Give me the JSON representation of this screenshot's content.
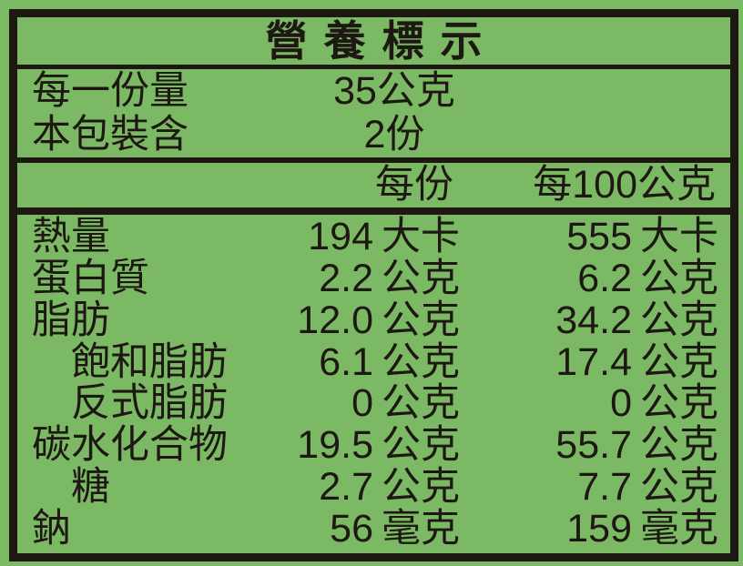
{
  "colors": {
    "background": "#7cb965",
    "ink": "#1e1813"
  },
  "title": "營養標示",
  "serving_info": {
    "rows": [
      {
        "label": "每一份量",
        "value": "35公克"
      },
      {
        "label": "本包裝含",
        "value": "2份"
      }
    ]
  },
  "column_headers": {
    "per_serving": "每份",
    "per_100g": "每100公克"
  },
  "nutrients": [
    {
      "label": "熱量",
      "per_serving": {
        "num": "194",
        "unit": "大卡"
      },
      "per_100g": {
        "num": "555",
        "unit": "大卡"
      }
    },
    {
      "label": "蛋白質",
      "per_serving": {
        "num": "2.2",
        "unit": "公克"
      },
      "per_100g": {
        "num": "6.2",
        "unit": "公克"
      }
    },
    {
      "label": "脂肪",
      "per_serving": {
        "num": "12.0",
        "unit": "公克"
      },
      "per_100g": {
        "num": "34.2",
        "unit": "公克"
      }
    },
    {
      "label": "飽和脂肪",
      "per_serving": {
        "num": "6.1",
        "unit": "公克"
      },
      "per_100g": {
        "num": "17.4",
        "unit": "公克"
      }
    },
    {
      "label": "反式脂肪",
      "per_serving": {
        "num": "0",
        "unit": "公克"
      },
      "per_100g": {
        "num": "0",
        "unit": "公克"
      }
    },
    {
      "label": "碳水化合物",
      "per_serving": {
        "num": "19.5",
        "unit": "公克"
      },
      "per_100g": {
        "num": "55.7",
        "unit": "公克"
      }
    },
    {
      "label": "糖",
      "per_serving": {
        "num": "2.7",
        "unit": "公克"
      },
      "per_100g": {
        "num": "7.7",
        "unit": "公克"
      }
    },
    {
      "label": "鈉",
      "per_serving": {
        "num": "56",
        "unit": "毫克"
      },
      "per_100g": {
        "num": "159",
        "unit": "毫克"
      }
    }
  ]
}
